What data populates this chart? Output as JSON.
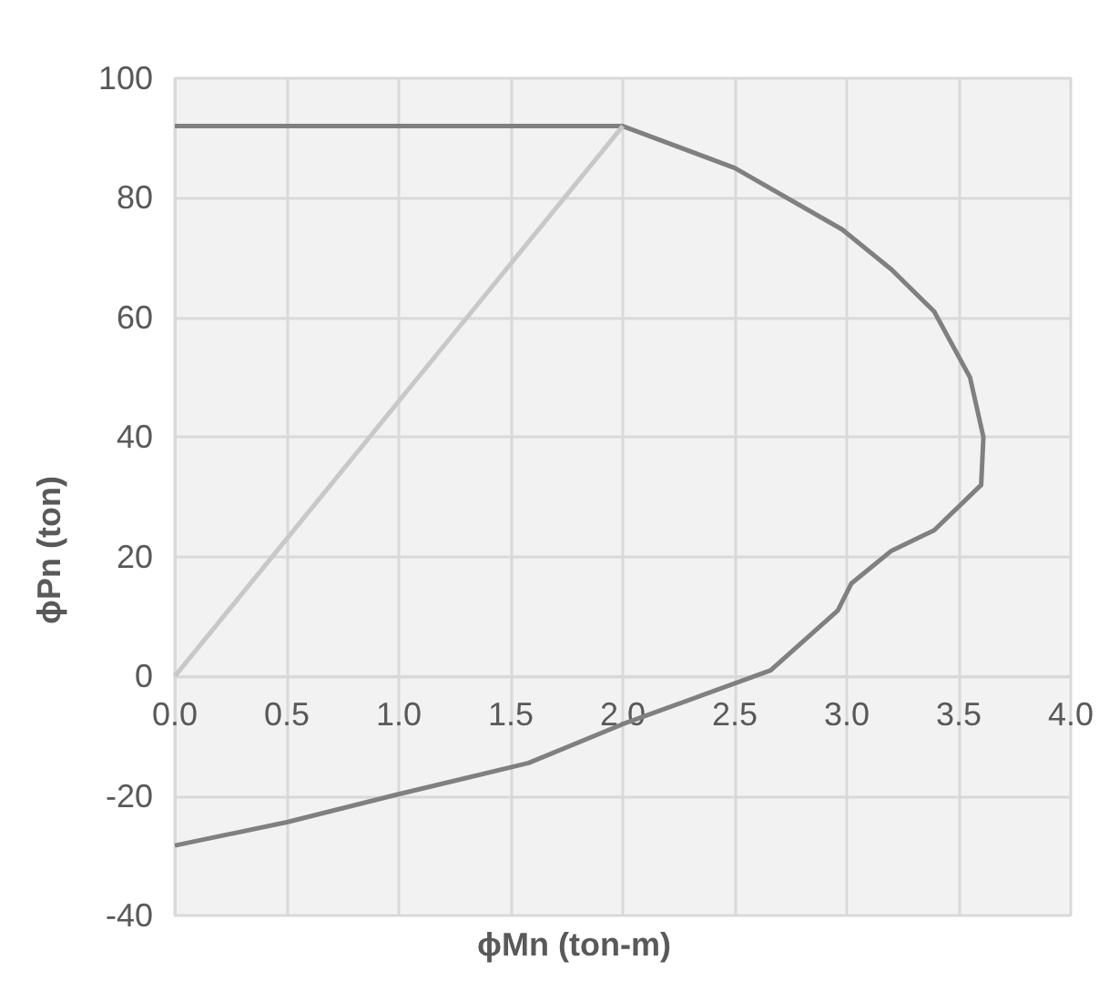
{
  "chart_data": {
    "type": "line",
    "xlabel": "ϕMn (ton-m)",
    "ylabel": "ϕPn (ton)",
    "series": [
      {
        "color": "#808080",
        "x": [
          0,
          2.0,
          2.5,
          2.98,
          3.2,
          3.39,
          3.55,
          3.61,
          3.6,
          3.39,
          3.2,
          3.02,
          2.96,
          2.66,
          2.0,
          1.58,
          0.99,
          0.5,
          0
        ],
        "values": [
          92,
          92,
          85,
          74.7,
          68,
          61,
          50,
          40,
          32,
          24.4,
          21,
          15.5,
          11,
          1,
          -8,
          -14.5,
          -19.8,
          -24.4,
          -28.3
        ]
      },
      {
        "color": "#c8c8c8",
        "x": [
          0,
          2.0
        ],
        "values": [
          0,
          92
        ]
      }
    ],
    "xlim": [
      0,
      4
    ],
    "xticks": [
      {
        "value": 0,
        "label": "0.0"
      },
      0.5,
      {
        "value": 1,
        "label": "1.0"
      },
      1.5,
      {
        "value": 2,
        "label": "2.0"
      },
      2.5,
      {
        "value": 3,
        "label": "3.0"
      },
      3.5,
      {
        "value": 4,
        "label": "4.0"
      }
    ],
    "ylim": [
      -40,
      100
    ],
    "yticks": [
      -40,
      -20,
      0,
      20,
      40,
      60,
      80,
      100
    ],
    "grid": true,
    "marker": "none",
    "line_style": "solid"
  }
}
